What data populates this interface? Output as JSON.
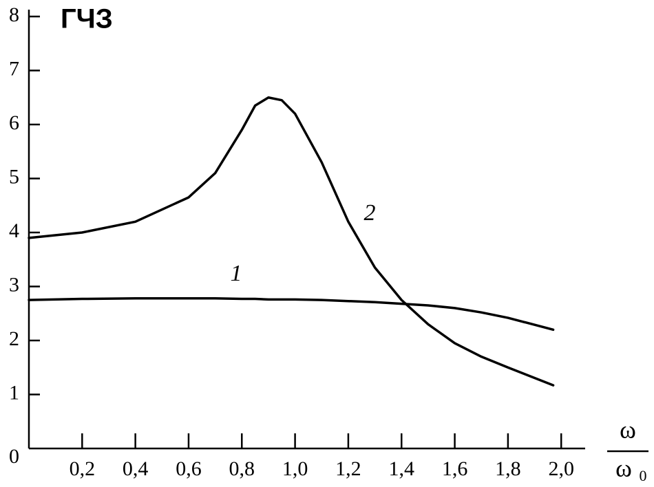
{
  "chart_data": {
    "type": "line",
    "title": "ГЧЗ",
    "x_label": {
      "numerator": "ω",
      "denominator": "ω",
      "denominator_subscript": "0"
    },
    "x": [
      0,
      0.2,
      0.4,
      0.6,
      0.7,
      0.8,
      0.85,
      0.9,
      0.95,
      1.0,
      1.1,
      1.2,
      1.3,
      1.4,
      1.5,
      1.6,
      1.7,
      1.8,
      1.97
    ],
    "series": [
      {
        "name": "1",
        "color": "#000000",
        "values": [
          2.75,
          2.77,
          2.78,
          2.78,
          2.78,
          2.77,
          2.77,
          2.76,
          2.76,
          2.76,
          2.75,
          2.73,
          2.71,
          2.68,
          2.65,
          2.6,
          2.52,
          2.42,
          2.2
        ]
      },
      {
        "name": "2",
        "color": "#000000",
        "values": [
          3.9,
          4.0,
          4.2,
          4.65,
          5.1,
          5.9,
          6.35,
          6.5,
          6.45,
          6.2,
          5.3,
          4.2,
          3.35,
          2.75,
          2.3,
          1.95,
          1.7,
          1.5,
          1.17
        ]
      }
    ],
    "xlim": [
      0,
      2.09
    ],
    "ylim": [
      0,
      8
    ],
    "xticks": [
      {
        "value": 0.2,
        "label": "0,2"
      },
      {
        "value": 0.4,
        "label": "0,4"
      },
      {
        "value": 0.6,
        "label": "0,6"
      },
      {
        "value": 0.8,
        "label": "0,8"
      },
      {
        "value": 1.0,
        "label": "1,0"
      },
      {
        "value": 1.2,
        "label": "1,2"
      },
      {
        "value": 1.4,
        "label": "1,4"
      },
      {
        "value": 1.6,
        "label": "1,6"
      },
      {
        "value": 1.8,
        "label": "1,8"
      },
      {
        "value": 2.0,
        "label": "2,0"
      }
    ],
    "yticks": [
      0,
      1,
      2,
      3,
      4,
      5,
      6,
      7,
      8
    ],
    "grid": false
  }
}
